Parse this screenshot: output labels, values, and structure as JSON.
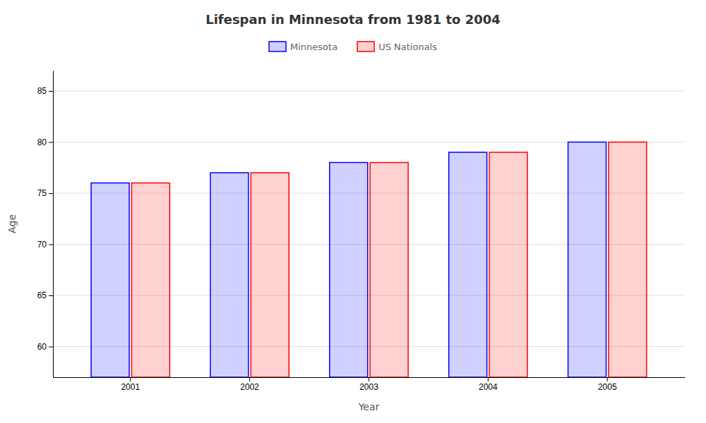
{
  "chart_data": {
    "type": "bar",
    "title": "Lifespan in Minnesota from 1981 to 2004",
    "xlabel": "Year",
    "ylabel": "Age",
    "categories": [
      "2001",
      "2002",
      "2003",
      "2004",
      "2005"
    ],
    "series": [
      {
        "name": "Minnesota",
        "color": "#0000ff",
        "values": [
          76,
          77,
          78,
          79,
          80
        ]
      },
      {
        "name": "US Nationals",
        "color": "#ff0000",
        "values": [
          76,
          77,
          78,
          79,
          80
        ]
      }
    ],
    "ylim": [
      57,
      87
    ],
    "yticks": [
      60,
      65,
      70,
      75,
      80,
      85
    ],
    "grid": true,
    "legend": "top"
  }
}
